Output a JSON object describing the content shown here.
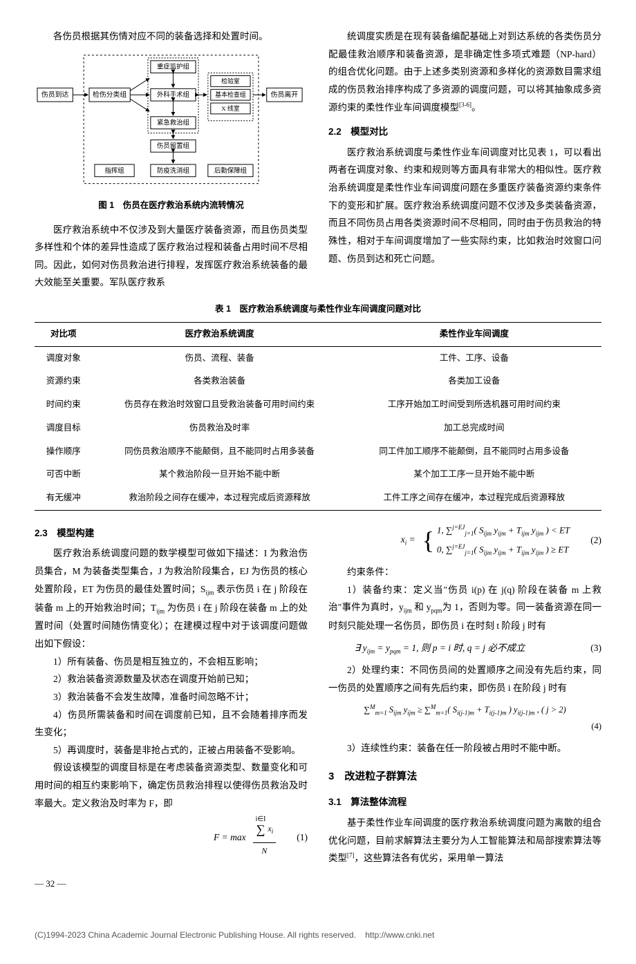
{
  "top": {
    "left_intro": "各伤员根据其伤情对应不同的装备选择和处置时间。",
    "fig1_caption": "图 1　伤员在医疗救治系统内流转情况",
    "fig1": {
      "casualty_arrive": "伤员到达",
      "casualty_leave": "伤员离开",
      "triage": "检伤分类组",
      "icu": "重症监护组",
      "surgery": "外科手术组",
      "emergency": "紧急救治组",
      "lab": "检验室",
      "exam": "基本检查组",
      "xray": "X 线室",
      "detention": "伤员留置组",
      "command": "指挥组",
      "decon": "防疫洗消组",
      "logistics": "后勤保障组"
    },
    "left_para2": "医疗救治系统中不仅涉及到大量医疗装备资源，而且伤员类型多样性和个体的差异性造成了医疗救治过程和装备占用时间不尽相同。因此，如何对伤员救治进行排程，发挥医疗救治系统装备的最大效能至关重要。军队医疗救系",
    "right_para": "统调度实质是在现有装备编配基础上对到达系统的各类伤员分配最佳救治顺序和装备资源，是非确定性多项式难题（NP-hard）的组合优化问题。由于上述多类别资源和多样化的资源数目需求组成的伤员救治排序构成了多资源的调度问题，可以将其抽象成多资源约束的柔性作业车间调度模型",
    "right_para_ref": "[3-6]",
    "right_para_end": "。",
    "s22_title": "2.2　模型对比",
    "s22_para": "医疗救治系统调度与柔性作业车间调度对比见表 1，可以看出两者在调度对象、约束和规则等方面具有非常大的相似性。医疗救治系统调度是柔性作业车间调度问题在多重医疗装备资源约束条件下的变形和扩展。医疗救治系统调度问题不仅涉及多类装备资源，而且不同伤员占用各类资源时间不尽相同，同时由于伤员救治的特殊性，相对于车间调度增加了一些实际约束，比如救治时效窗口问题、伤员到达和死亡问题。"
  },
  "table1": {
    "caption": "表 1　医疗救治系统调度与柔性作业车间调度问题对比",
    "columns": [
      "对比项",
      "医疗救治系统调度",
      "柔性作业车间调度"
    ],
    "rows": [
      [
        "调度对象",
        "伤员、流程、装备",
        "工件、工序、设备"
      ],
      [
        "资源约束",
        "各类救治装备",
        "各类加工设备"
      ],
      [
        "时间约束",
        "伤员存在救治时效窗口且受救治装备可用时间约束",
        "工序开始加工时间受到所选机器可用时间约束"
      ],
      [
        "调度目标",
        "伤员救治及时率",
        "加工总完成时间"
      ],
      [
        "操作顺序",
        "同伤员救治顺序不能颠倒，且不能同时占用多装备",
        "同工件加工顺序不能颠倒，且不能同时占用多设备"
      ],
      [
        "可否中断",
        "某个救治阶段一旦开始不能中断",
        "某个加工工序一旦开始不能中断"
      ],
      [
        "有无缓冲",
        "救治阶段之间存在缓冲，本过程完成后资源释放",
        "工件工序之间存在缓冲，本过程完成后资源释放"
      ]
    ]
  },
  "bottom": {
    "s23_title": "2.3　模型构建",
    "s23_para1_a": "医疗救治系统调度问题的数学模型可做如下描述：I 为救治伤员集合，M 为装备类型集合，J 为救治阶段集合，EJ 为伤员的核心处置阶段，ET 为伤员的最佳处置时间；S",
    "s23_para1_sub1": "ijm",
    "s23_para1_b": " 表示伤员 i 在 j 阶段在装备 m 上的开始救治时间；T",
    "s23_para1_sub2": "ijm",
    "s23_para1_c": " 为伤员 i 在 j 阶段在装备 m 上的处置时间（处置时间随伤情变化）；在建模过程中对于该调度问题做出如下假设：",
    "assumptions": [
      "1）所有装备、伤员是相互独立的，不会相互影响；",
      "2）救治装备资源数量及状态在调度开始前已知；",
      "3）救治装备不会发生故障，准备时间忽略不计；",
      "4）伤员所需装备和时间在调度前已知，且不会随着排序而发生变化；",
      "5）再调度时，装备是非抢占式的，正被占用装备不受影响。"
    ],
    "s23_para2": "假设该模型的调度目标是在考虑装备资源类型、数量变化和可用时间的相互约束影响下，确定伤员救治排程以使得伤员救治及时率最大。定义救治及时率为 F，即",
    "eq1": {
      "lhs": "F = max",
      "num_sigma_top": "i∈I",
      "num_sigma_body": "x",
      "num_sigma_sub": "i",
      "den": "N",
      "num": "(1)"
    },
    "eq2": {
      "lhs": "x",
      "lhs_sub": "i",
      "case1_a": "1, ∑",
      "case1_top": "j=EJ",
      "case1_bottom": "j=1",
      "case1_b": "( S",
      "case1_sub1": "ijm",
      "case1_c": " y",
      "case1_sub2": "ijm",
      "case1_d": " + T",
      "case1_sub3": "ijm",
      "case1_e": " y",
      "case1_sub4": "ijm",
      "case1_f": " ) < ET",
      "case2_a": "0, ∑",
      "case2_b": "( S",
      "case2_c": " y",
      "case2_d": " + T",
      "case2_e": " y",
      "case2_f": " ) ≥ ET",
      "num": "(2)"
    },
    "constraints_label": "约束条件：",
    "c1_a": "1）装备约束：定义当\"伤员 i(p) 在 j(q) 阶段在装备 m 上救治\"事件为真时，y",
    "c1_sub1": "ijm",
    "c1_b": " 和 y",
    "c1_sub2": "pqm",
    "c1_c": "为 1，否则为零。同一装备资源在同一时刻只能处理一名伤员，即伤员 i 在时刻 t 阶段 j 时有",
    "eq3": {
      "body_a": "∃ y",
      "body_sub1": "ijm",
      "body_b": " = y",
      "body_sub2": "pqm",
      "body_c": " = 1, 则 p = i 时, q = j 必不成立",
      "num": "(3)"
    },
    "c2": "2）处理约束：不同伤员间的处置顺序之间没有先后约束，同一伤员的处置顺序之间有先后约束，即伤员 i 在阶段 j 时有",
    "eq4": {
      "lhs_a": "∑",
      "lhs_top": "M",
      "lhs_bot": "m=1",
      "lhs_b": " S",
      "lhs_sub1": "ijm",
      "lhs_c": " y",
      "lhs_sub2": "ijm",
      "lhs_d": " ≥ ∑",
      "lhs_e": "( S",
      "lhs_sub3": "i(j-1)m",
      "lhs_f": " + T",
      "lhs_sub4": "i(j-1)m",
      "lhs_g": " ) y",
      "lhs_sub5": "i(j-1)m",
      "lhs_h": " , ( j > 2)",
      "num": "(4)"
    },
    "c3": "3）连续性约束：装备在任一阶段被占用时不能中断。",
    "s3_title": "3　改进粒子群算法",
    "s31_title": "3.1　算法整体流程",
    "s31_para": "基于柔性作业车间调度的医疗救治系统调度问题为离散的组合优化问题，目前求解算法主要分为人工智能算法和局部搜索算法等类型",
    "s31_ref": "[7]",
    "s31_para_end": "，这些算法各有优劣，采用单一算法"
  },
  "page_number": "— 32 —",
  "footer": {
    "text": "(C)1994-2023 China Academic Journal Electronic Publishing House. All rights reserved.",
    "link": "http://www.cnki.net"
  }
}
